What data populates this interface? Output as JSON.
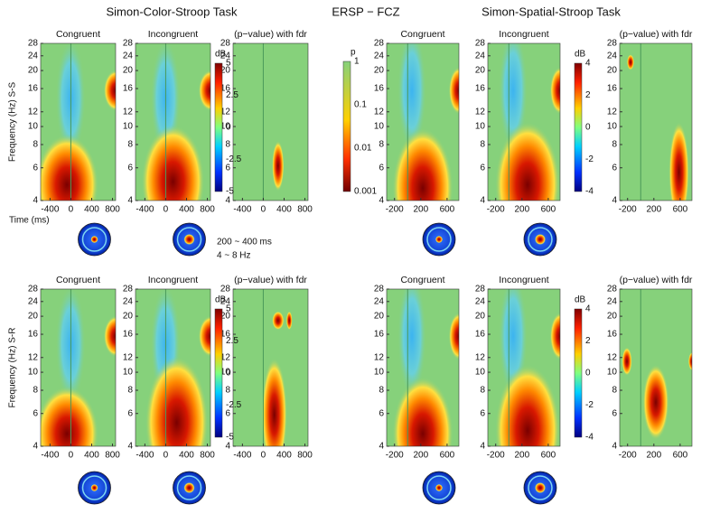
{
  "header": {
    "left_title": "Simon-Color-Stroop Task",
    "center_title": "ERSP − FCZ",
    "right_title": "Simon-Spatial-Stroop Task"
  },
  "rows": [
    {
      "label": "Frequency (Hz) S-S"
    },
    {
      "label": "Frequency (Hz) S-R"
    }
  ],
  "panel_titles": [
    "Congruent",
    "Incongruent",
    "(p−value) with fdr"
  ],
  "freq_ticks": [
    "28",
    "24",
    "20",
    "16",
    "12",
    "10",
    "8",
    "6",
    "4"
  ],
  "time_ticks": {
    "color": [
      "-400",
      "0",
      "400",
      "800"
    ],
    "spatial": [
      "-200",
      "200",
      "600"
    ]
  },
  "time_label": "Time (ms)",
  "colorbars": {
    "db_label": "dB",
    "color_db": [
      "5",
      "2.5",
      "0",
      "-2.5",
      "-5"
    ],
    "spatial_db": [
      "4",
      "2",
      "0",
      "-2",
      "-4"
    ],
    "p_label": "p",
    "p_ticks": [
      "1",
      "0.1",
      "0.01",
      "0.001"
    ]
  },
  "annotation": [
    "200 ~ 400 ms",
    "4 ~ 8 Hz"
  ]
}
